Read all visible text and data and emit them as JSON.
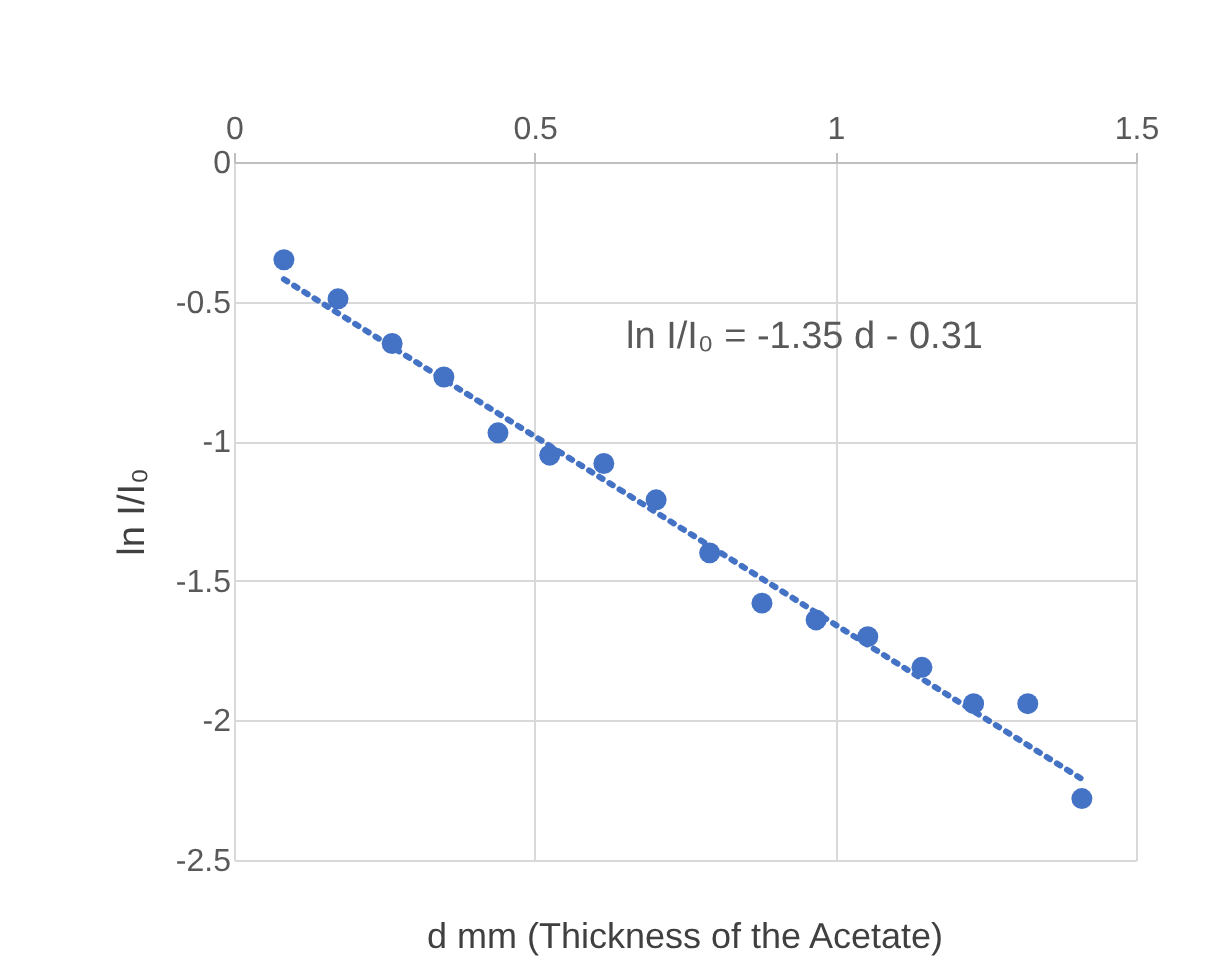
{
  "chart_data": {
    "type": "scatter",
    "xlabel": "d mm (Thickness of the Acetate)",
    "ylabel": "ln I/I₀",
    "xlim": [
      0,
      1.5
    ],
    "xticks": [
      0,
      0.5,
      1,
      1.5
    ],
    "ylim": [
      -2.5,
      0
    ],
    "yticks": [
      0,
      -0.5,
      -1,
      -1.5,
      -2,
      -2.5
    ],
    "grid": true,
    "marker": "circle",
    "series": [
      {
        "color": "#4472c4",
        "x": [
          0.083,
          0.173,
          0.263,
          0.349,
          0.439,
          0.525,
          0.615,
          0.702,
          0.791,
          0.878,
          0.968,
          1.054,
          1.144,
          1.23,
          1.32,
          1.41
        ],
        "values": [
          -0.35,
          -0.49,
          -0.65,
          -0.77,
          -0.97,
          -1.05,
          -1.08,
          -1.21,
          -1.4,
          -1.58,
          -1.64,
          -1.7,
          -1.81,
          -1.94,
          -1.94,
          -2.28
        ]
      },
      {
        "type": "line",
        "color": "#4472c4",
        "line_style": "dotted",
        "marker": "none",
        "x": [
          0.083,
          1.41
        ],
        "values": [
          -0.42,
          -2.21
        ]
      }
    ],
    "annotations": [
      "ln I/I₀ = -1.35 d - 0.31"
    ]
  }
}
